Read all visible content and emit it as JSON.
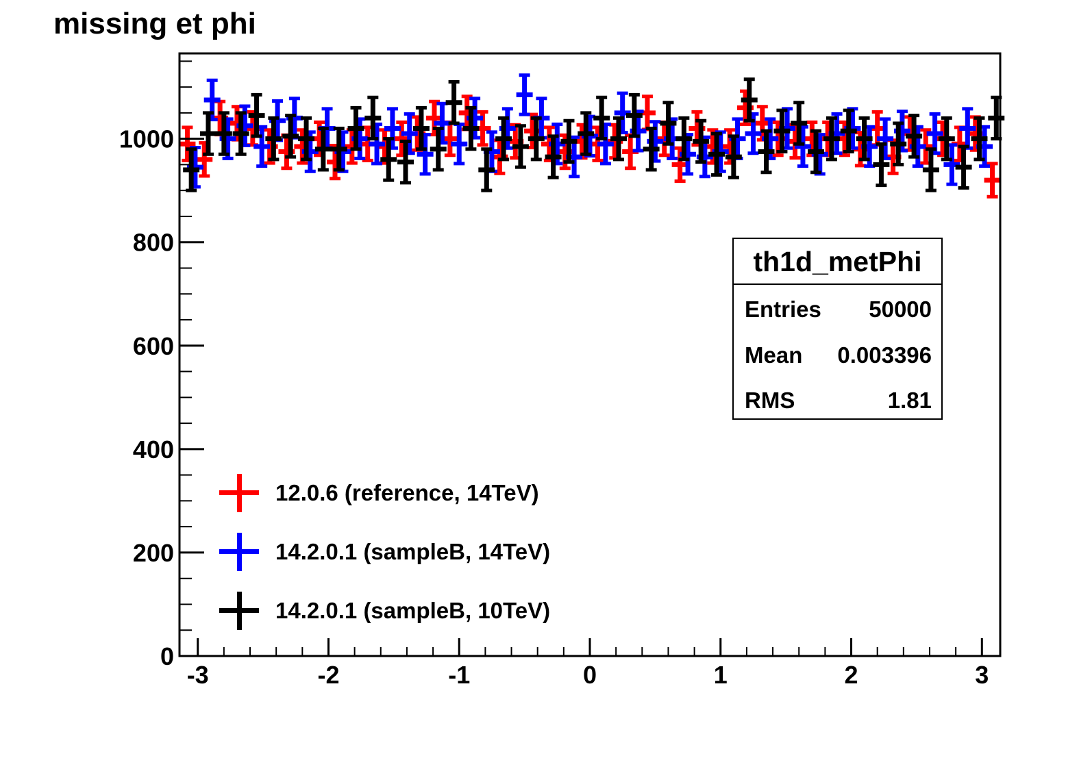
{
  "title": "missing et phi",
  "stats": {
    "name": "th1d_metPhi",
    "entries_label": "Entries",
    "entries_value": "50000",
    "mean_label": "Mean",
    "mean_value": "0.003396",
    "rms_label": "RMS",
    "rms_value": "1.81"
  },
  "legend": [
    {
      "label": "12.0.6 (reference, 14TeV)",
      "color": "#ff0000"
    },
    {
      "label": "14.2.0.1 (sampleB, 14TeV)",
      "color": "#0000ff"
    },
    {
      "label": "14.2.0.1 (sampleB, 10TeV)",
      "color": "#000000"
    }
  ],
  "chart_data": {
    "type": "scatter",
    "title": "missing et phi",
    "xlabel": "",
    "ylabel": "",
    "xlim": [
      -3.14,
      3.14
    ],
    "ylim": [
      0,
      1165
    ],
    "x_ticks": [
      -3,
      -2,
      -1,
      0,
      1,
      2,
      3
    ],
    "x_tick_labels": [
      "-3",
      "-2",
      "-1",
      "0",
      "1",
      "2",
      "3"
    ],
    "y_ticks": [
      0,
      200,
      400,
      600,
      800,
      1000
    ],
    "y_tick_labels": [
      "0",
      "200",
      "400",
      "600",
      "800",
      "1000"
    ],
    "bin_width": 0.1257,
    "grid": false,
    "legend_position": "bottom-left",
    "series": [
      {
        "name": "12.0.6 (reference, 14TeV)",
        "color": "#ff0000",
        "error": 32,
        "x": [
          -3.08,
          -2.95,
          -2.83,
          -2.7,
          -2.58,
          -2.45,
          -2.32,
          -2.2,
          -2.07,
          -1.95,
          -1.82,
          -1.7,
          -1.57,
          -1.44,
          -1.32,
          -1.19,
          -1.07,
          -0.94,
          -0.82,
          -0.69,
          -0.57,
          -0.44,
          -0.31,
          -0.19,
          -0.06,
          0.06,
          0.19,
          0.31,
          0.44,
          0.57,
          0.69,
          0.82,
          0.94,
          1.07,
          1.19,
          1.32,
          1.44,
          1.57,
          1.7,
          1.82,
          1.95,
          2.07,
          2.2,
          2.32,
          2.45,
          2.57,
          2.7,
          2.83,
          2.95,
          3.08
        ],
        "y": [
          990,
          960,
          1040,
          1030,
          1020,
          985,
          975,
          985,
          1000,
          955,
          985,
          990,
          985,
          1000,
          1010,
          1040,
          1000,
          1050,
          1020,
          965,
          995,
          1015,
          990,
          975,
          995,
          990,
          995,
          975,
          1050,
          1000,
          950,
          1020,
          985,
          985,
          1060,
          1030,
          1000,
          995,
          1000,
          1000,
          1000,
          980,
          1020,
          965,
          1010,
          985,
          1000,
          990,
          1010,
          920
        ]
      },
      {
        "name": "14.2.0.1 (sampleB, 14TeV)",
        "color": "#0000ff",
        "error": 38,
        "x": [
          -3.02,
          -2.89,
          -2.77,
          -2.64,
          -2.51,
          -2.39,
          -2.26,
          -2.14,
          -2.01,
          -1.89,
          -1.76,
          -1.63,
          -1.51,
          -1.38,
          -1.26,
          -1.13,
          -1.0,
          -0.88,
          -0.75,
          -0.63,
          -0.5,
          -0.37,
          -0.25,
          -0.12,
          0.0,
          0.12,
          0.25,
          0.37,
          0.5,
          0.63,
          0.75,
          0.88,
          1.0,
          1.13,
          1.25,
          1.38,
          1.51,
          1.63,
          1.76,
          1.89,
          2.01,
          2.14,
          2.26,
          2.39,
          2.51,
          2.64,
          2.77,
          2.89,
          3.02
        ],
        "y": [
          945,
          1075,
          1000,
          1025,
          985,
          1035,
          1040,
          975,
          1020,
          975,
          1000,
          990,
          1020,
          1010,
          970,
          1030,
          990,
          1040,
          975,
          1020,
          1085,
          1040,
          990,
          965,
          1005,
          990,
          1050,
          1015,
          995,
          1000,
          970,
          965,
          975,
          1000,
          1010,
          1000,
          1020,
          985,
          970,
          1010,
          1020,
          985,
          1000,
          1015,
          985,
          1010,
          950,
          1020,
          985
        ]
      },
      {
        "name": "14.2.0.1 (sampleB, 10TeV)",
        "color": "#000000",
        "error": 40,
        "x": [
          -3.05,
          -2.92,
          -2.8,
          -2.67,
          -2.55,
          -2.42,
          -2.29,
          -2.17,
          -2.04,
          -1.92,
          -1.79,
          -1.66,
          -1.54,
          -1.41,
          -1.29,
          -1.16,
          -1.04,
          -0.91,
          -0.79,
          -0.66,
          -0.53,
          -0.41,
          -0.28,
          -0.16,
          -0.03,
          0.09,
          0.22,
          0.34,
          0.47,
          0.6,
          0.72,
          0.85,
          0.97,
          1.1,
          1.22,
          1.35,
          1.47,
          1.6,
          1.73,
          1.85,
          1.98,
          2.1,
          2.23,
          2.36,
          2.48,
          2.61,
          2.73,
          2.86,
          2.98,
          3.11
        ],
        "y": [
          940,
          1010,
          1010,
          1010,
          1045,
          1000,
          1005,
          1000,
          980,
          980,
          1020,
          1040,
          960,
          955,
          1020,
          980,
          1070,
          1020,
          940,
          1000,
          985,
          1000,
          965,
          995,
          1010,
          1040,
          1000,
          1045,
          980,
          1030,
          1000,
          995,
          970,
          965,
          1075,
          975,
          1015,
          1030,
          975,
          1000,
          1015,
          1000,
          950,
          990,
          1005,
          940,
          1000,
          945,
          1000,
          1040
        ]
      }
    ]
  }
}
